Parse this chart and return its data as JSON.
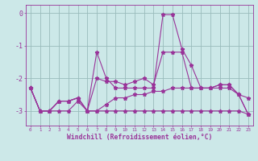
{
  "x": [
    0,
    1,
    2,
    3,
    4,
    5,
    6,
    7,
    8,
    9,
    10,
    11,
    12,
    13,
    14,
    15,
    16,
    17,
    18,
    19,
    20,
    21,
    22,
    23
  ],
  "line1": [
    -2.3,
    -3.0,
    -3.0,
    -3.0,
    -3.0,
    -2.7,
    -3.0,
    -3.0,
    -3.0,
    -3.0,
    -3.0,
    -3.0,
    -3.0,
    -3.0,
    -3.0,
    -3.0,
    -3.0,
    -3.0,
    -3.0,
    -3.0,
    -3.0,
    -3.0,
    -3.0,
    -3.1
  ],
  "line2": [
    -2.3,
    -3.0,
    -3.0,
    -2.7,
    -2.7,
    -2.6,
    -3.0,
    -2.0,
    -2.1,
    -2.1,
    -2.2,
    -2.1,
    -2.0,
    -2.2,
    -1.2,
    -1.2,
    -1.2,
    -2.3,
    -2.3,
    -2.3,
    -2.3,
    -2.3,
    -2.5,
    -2.6
  ],
  "line3": [
    -2.3,
    -3.0,
    -3.0,
    -2.7,
    -2.7,
    -2.6,
    -3.0,
    -1.2,
    -2.0,
    -2.3,
    -2.3,
    -2.3,
    -2.3,
    -2.3,
    -0.05,
    -0.05,
    -1.1,
    -1.6,
    -2.3,
    -2.3,
    -2.2,
    -2.2,
    -2.5,
    -3.1
  ],
  "line4": [
    -2.3,
    -3.0,
    -3.0,
    -2.7,
    -2.7,
    -2.6,
    -3.0,
    -3.0,
    -2.8,
    -2.6,
    -2.6,
    -2.5,
    -2.5,
    -2.4,
    -2.4,
    -2.3,
    -2.3,
    -2.3,
    -2.3,
    -2.3,
    -2.2,
    -2.2,
    -2.5,
    -3.1
  ],
  "bg_color": "#cce8e8",
  "line_color": "#993399",
  "grid_color": "#99bbbb",
  "xlabel": "Windchill (Refroidissement éolien,°C)",
  "xlim": [
    -0.5,
    23.5
  ],
  "ylim": [
    -3.45,
    0.25
  ],
  "yticks": [
    0,
    -1,
    -2,
    -3
  ],
  "xticks": [
    0,
    1,
    2,
    3,
    4,
    5,
    6,
    7,
    8,
    9,
    10,
    11,
    12,
    13,
    14,
    15,
    16,
    17,
    18,
    19,
    20,
    21,
    22,
    23
  ]
}
